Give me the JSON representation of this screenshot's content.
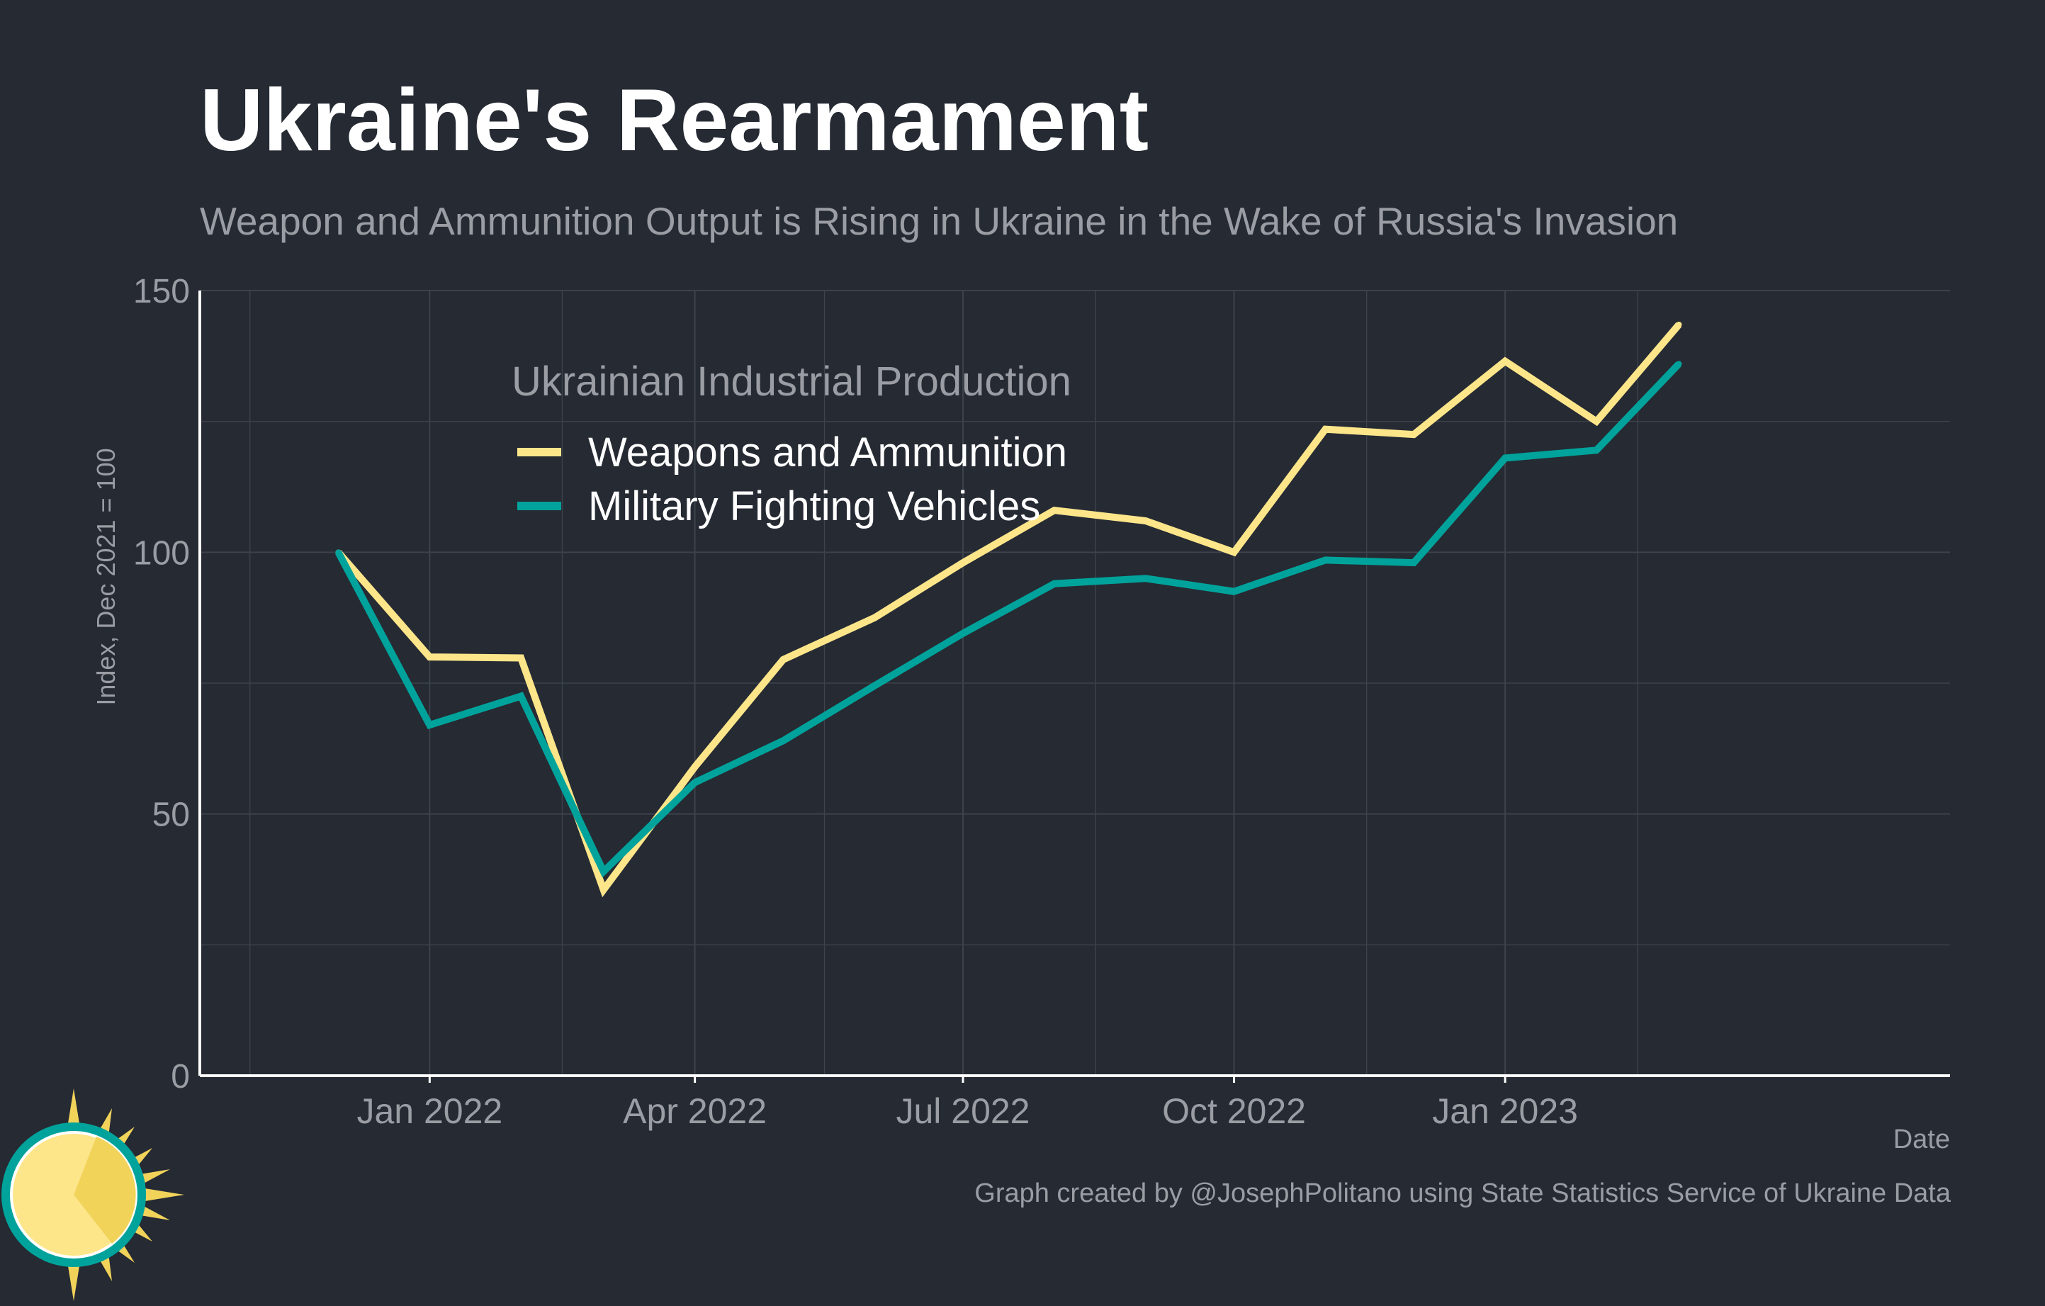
{
  "chart_data": {
    "type": "line",
    "title": "Ukraine's Rearmament",
    "subtitle": "Weapon and Ammunition Output is Rising in Ukraine in the Wake of Russia's Invasion",
    "ylabel": "Index, Dec 2021 = 100",
    "xlabel": "Date",
    "ylim": [
      0,
      150
    ],
    "yticks": [
      0,
      50,
      100,
      150
    ],
    "xlim": [
      "2021-10-15",
      "2023-06-01"
    ],
    "xticks": [
      {
        "date": "2022-01-01",
        "label": "Jan 2022"
      },
      {
        "date": "2022-04-01",
        "label": "Apr 2022"
      },
      {
        "date": "2022-07-01",
        "label": "Jul 2022"
      },
      {
        "date": "2022-10-01",
        "label": "Oct 2022"
      },
      {
        "date": "2023-01-01",
        "label": "Jan 2023"
      }
    ],
    "minor_gridlines": [
      "2021-11-01",
      "2022-02-15",
      "2022-05-15",
      "2022-08-15",
      "2022-11-15",
      "2023-02-15"
    ],
    "grid": true,
    "legend": {
      "title": "Ukrainian Industrial Production",
      "placement": "top-left"
    },
    "x": [
      "2021-12-01",
      "2022-01-01",
      "2022-02-01",
      "2022-03-01",
      "2022-04-01",
      "2022-05-01",
      "2022-06-01",
      "2022-07-01",
      "2022-08-01",
      "2022-09-01",
      "2022-10-01",
      "2022-11-01",
      "2022-12-01",
      "2023-01-01",
      "2023-02-01",
      "2023-03-01"
    ],
    "series": [
      {
        "name": "Weapons and Ammunition",
        "color": "#fde68a",
        "values": [
          100,
          80,
          79.8,
          35.5,
          59,
          79.5,
          87.5,
          98,
          108,
          106,
          100,
          123.5,
          122.5,
          136.5,
          125,
          143.5
        ]
      },
      {
        "name": "Military Fighting Vehicles",
        "color": "#00a39b",
        "values": [
          100,
          67,
          72.5,
          39,
          56,
          64,
          74.5,
          84.5,
          94,
          95,
          92.5,
          98.5,
          98,
          118,
          119.5,
          136
        ]
      }
    ]
  },
  "caption": "Graph created by @JosephPolitano using State Statistics Service of Ukraine Data",
  "colors": {
    "background": "#252a33",
    "grid": "#3d424b",
    "axis": "#ffffff",
    "muted_text": "#9a9da3"
  },
  "logo_icon": "sun-logo-icon"
}
